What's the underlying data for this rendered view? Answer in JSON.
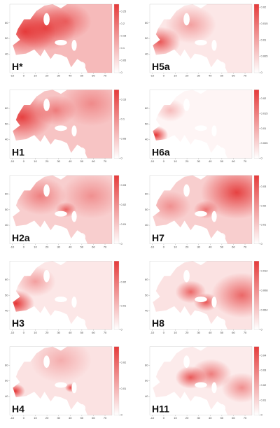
{
  "map_axes": {
    "xlim": [
      -12,
      76
    ],
    "ylim": [
      28,
      72
    ],
    "xticks": [
      -10,
      0,
      10,
      20,
      30,
      40,
      50,
      60,
      70
    ],
    "yticks": [
      40,
      50,
      60
    ]
  },
  "panels": [
    {
      "label": "H*",
      "clim": [
        0,
        0.28
      ],
      "cticks": [
        0,
        0.05,
        0.1,
        0.15,
        0.2,
        0.25
      ]
    },
    {
      "label": "H5a",
      "clim": [
        0,
        0.021
      ],
      "cticks": [
        0,
        0.005,
        0.01,
        0.015,
        0.02
      ]
    },
    {
      "label": "H1",
      "clim": [
        0,
        0.175
      ],
      "cticks": [
        0,
        0.05,
        0.1,
        0.15
      ]
    },
    {
      "label": "H6a",
      "clim": [
        0,
        0.023
      ],
      "cticks": [
        0,
        0.005,
        0.01,
        0.015,
        0.02
      ]
    },
    {
      "label": "H2a",
      "clim": [
        0,
        0.035
      ],
      "cticks": [
        0,
        0.01,
        0.02,
        0.03
      ]
    },
    {
      "label": "H7",
      "clim": [
        0,
        0.036
      ],
      "cticks": [
        0,
        0.01,
        0.02,
        0.03
      ]
    },
    {
      "label": "H3",
      "clim": [
        0,
        0.029
      ],
      "cticks": [
        0,
        0.01,
        0.02
      ]
    },
    {
      "label": "H8",
      "clim": [
        0,
        0.014
      ],
      "cticks": [
        0,
        0.004,
        0.008,
        0.012
      ]
    },
    {
      "label": "H4",
      "clim": [
        0,
        0.026
      ],
      "cticks": [
        0,
        0.01,
        0.02
      ]
    },
    {
      "label": "H11",
      "clim": [
        0,
        0.046
      ],
      "cticks": [
        0,
        0.01,
        0.02,
        0.03,
        0.04
      ]
    }
  ]
}
